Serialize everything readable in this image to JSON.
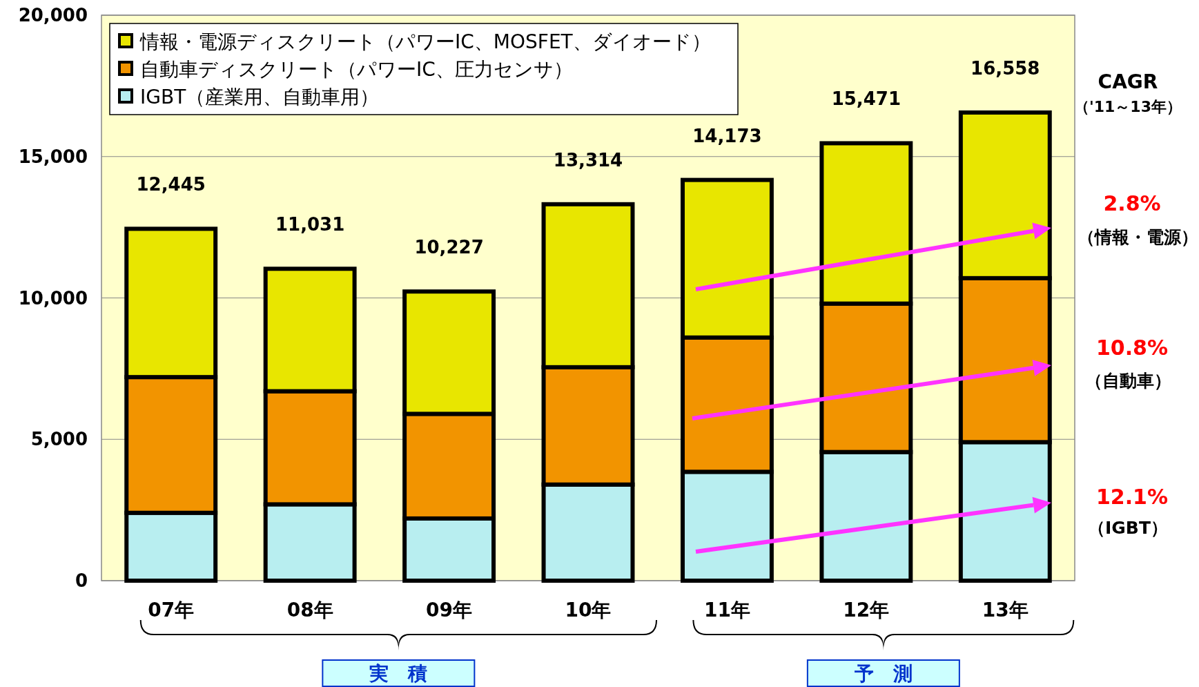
{
  "chart_data": {
    "type": "bar",
    "stacked": true,
    "categories": [
      "07年",
      "08年",
      "09年",
      "10年",
      "11年",
      "12年",
      "13年"
    ],
    "series": [
      {
        "name": "IGBT（産業用、自動車用）",
        "color": "#b8eef0",
        "values": [
          2400,
          2700,
          2200,
          3400,
          3850,
          4550,
          4900
        ]
      },
      {
        "name": "自動車ディスクリート（パワーIC、圧力センサ）",
        "color": "#f29400",
        "values": [
          4800,
          4000,
          3700,
          4150,
          4750,
          5250,
          5800
        ]
      },
      {
        "name": "情報・電源ディスクリート（パワーIC、MOSFET、ダイオード）",
        "color": "#e8e600",
        "values": [
          5245,
          4331,
          4327,
          5764,
          5573,
          5671,
          5858
        ]
      }
    ],
    "totals": [
      "12,445",
      "11,031",
      "10,227",
      "13,314",
      "14,173",
      "15,471",
      "16,558"
    ],
    "ylim": [
      0,
      20000
    ],
    "yticks": [
      {
        "value": 0,
        "label": "0"
      },
      {
        "value": 5000,
        "label": "5,000"
      },
      {
        "value": 10000,
        "label": "10,000"
      },
      {
        "value": 15000,
        "label": "15,000"
      },
      {
        "value": 20000,
        "label": "20,000"
      }
    ],
    "grid": "y",
    "legend": "top left",
    "annotations": [
      "CAGR",
      "（'11～13年）",
      "2.8%",
      "（情報・電源）",
      "10.8%",
      "（自動車）",
      "12.1%",
      "（IGBT）",
      "実　積",
      "予　測"
    ]
  }
}
